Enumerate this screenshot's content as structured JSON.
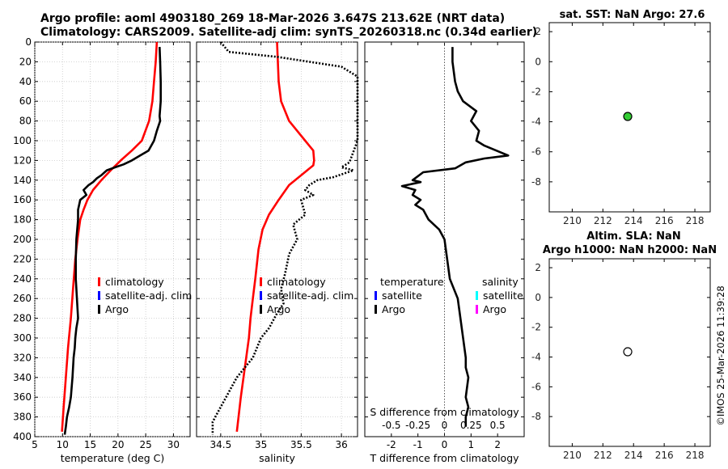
{
  "header": {
    "title_line1": "Argo profile: aoml 4903180_269 18-Mar-2026 3.647S 213.62E (NRT data)",
    "title_line2": "Climatology: CARS2009. Satellite-adj clim: synTS_20260318.nc (0.34d earlier)"
  },
  "footer": {
    "stamp": "©IMOS 25-Mar-2026 11:39:28"
  },
  "colors": {
    "climatology": "#ff0000",
    "satellite": "#0000ff",
    "argo": "#000000",
    "sal_satellite": "#00ffff",
    "sal_argo": "#ff00ff",
    "sst_marker": "#33cc33"
  },
  "chart_data": [
    {
      "type": "line",
      "name": "temperature-profile",
      "xlabel": "temperature (deg C)",
      "xlim": [
        5,
        33
      ],
      "ylim": [
        400,
        0
      ],
      "xticks": [
        5,
        10,
        15,
        20,
        25,
        30
      ],
      "yticks": [
        0,
        20,
        40,
        60,
        80,
        100,
        120,
        140,
        160,
        180,
        200,
        220,
        240,
        260,
        280,
        300,
        320,
        340,
        360,
        380,
        400
      ],
      "grid": true,
      "legend": [
        "climatology",
        "satellite-adj. clim",
        "Argo"
      ],
      "series": [
        {
          "name": "climatology",
          "color": "red",
          "style": "solid",
          "x": [
            27.0,
            26.8,
            26.5,
            26.2,
            25.6,
            24.3,
            22.5,
            20.5,
            18.7,
            17.0,
            15.5,
            14.5,
            13.8,
            13.2,
            12.7,
            12.3,
            11.9,
            11.5,
            11.0,
            10.6,
            10.2,
            9.9
          ],
          "y": [
            0,
            20,
            40,
            60,
            80,
            100,
            110,
            120,
            130,
            140,
            150,
            160,
            170,
            180,
            200,
            220,
            250,
            280,
            310,
            340,
            370,
            395
          ]
        },
        {
          "name": "Argo",
          "color": "black",
          "style": "solid",
          "x": [
            27.5,
            27.6,
            27.7,
            27.7,
            27.5,
            27.6,
            27.0,
            26.5,
            25.5,
            24.0,
            22.5,
            21.0,
            19.5,
            18.0,
            17.0,
            16.2,
            15.5,
            14.7,
            13.8,
            14.3,
            13.2,
            12.8,
            12.8,
            12.5,
            12.4,
            12.4,
            12.6,
            12.8,
            12.5,
            12.3,
            12.2,
            12.0,
            11.8,
            11.5,
            11.2,
            10.8,
            10.6,
            10.4
          ],
          "y": [
            5,
            20,
            40,
            60,
            75,
            80,
            90,
            100,
            110,
            115,
            120,
            124,
            127,
            130,
            135,
            138,
            142,
            145,
            150,
            155,
            160,
            170,
            180,
            200,
            220,
            240,
            260,
            280,
            290,
            300,
            310,
            320,
            340,
            360,
            370,
            380,
            390,
            398
          ]
        }
      ]
    },
    {
      "type": "line",
      "name": "salinity-profile",
      "xlabel": "salinity",
      "xlim": [
        34.2,
        36.2
      ],
      "ylim": [
        400,
        0
      ],
      "xticks": [
        34.5,
        35,
        35.5,
        36
      ],
      "grid": true,
      "legend": [
        "climatology",
        "satellite-adj. clim",
        "Argo"
      ],
      "series": [
        {
          "name": "climatology",
          "color": "red",
          "style": "solid",
          "x": [
            35.2,
            35.21,
            35.22,
            35.25,
            35.35,
            35.55,
            35.65,
            35.66,
            35.65,
            35.5,
            35.35,
            35.22,
            35.1,
            35.02,
            34.97,
            34.93,
            34.9,
            34.87,
            34.85,
            34.8,
            34.75,
            34.7
          ],
          "y": [
            0,
            20,
            40,
            60,
            80,
            100,
            110,
            120,
            125,
            135,
            145,
            160,
            175,
            190,
            210,
            240,
            260,
            280,
            300,
            330,
            360,
            395
          ]
        },
        {
          "name": "Argo",
          "color": "black",
          "style": "dotted",
          "x": [
            34.5,
            34.6,
            35.2,
            36.0,
            36.2,
            36.2,
            36.1,
            36.0,
            36.15,
            35.9,
            35.7,
            35.6,
            35.55,
            35.65,
            35.5,
            35.55,
            35.4,
            35.45,
            35.35,
            35.3,
            35.25,
            35.28,
            35.2,
            35.1,
            35.0,
            34.95,
            34.9,
            34.8,
            34.7,
            34.6,
            34.5,
            34.4,
            34.4
          ],
          "y": [
            0,
            10,
            15,
            25,
            35,
            100,
            122,
            127,
            130,
            137,
            140,
            145,
            150,
            155,
            160,
            175,
            185,
            200,
            215,
            235,
            250,
            265,
            275,
            290,
            300,
            310,
            320,
            330,
            340,
            355,
            370,
            385,
            398
          ]
        }
      ]
    },
    {
      "type": "line",
      "name": "difference-profile",
      "xlabel": "T difference from climatology",
      "xlabel_top": "S difference from climatology",
      "xlim": [
        -3,
        3
      ],
      "xlim_top": [
        -0.75,
        0.75
      ],
      "ylim": [
        400,
        0
      ],
      "xticks": [
        -2,
        -1,
        0,
        1,
        2
      ],
      "xticks_top": [
        -0.5,
        -0.25,
        0,
        0.25,
        0.5
      ],
      "legend_temperature": [
        "temperature",
        "satellite",
        "Argo"
      ],
      "legend_salinity": [
        "salinity",
        "satellite",
        "Argo"
      ],
      "series": [
        {
          "name": "T Argo - clim",
          "color": "black",
          "style": "solid",
          "x": [
            0.3,
            0.3,
            0.4,
            0.5,
            0.7,
            1.2,
            1.0,
            1.3,
            1.2,
            1.5,
            2.4,
            1.5,
            0.8,
            0.4,
            -0.8,
            -1.2,
            -0.9,
            -1.6,
            -1.1,
            -1.2,
            -0.9,
            -1.1,
            -0.8,
            -0.6,
            -0.2,
            0.0,
            0.1,
            0.2,
            0.5,
            0.6,
            0.7,
            0.8,
            0.8,
            0.9,
            0.8,
            0.9,
            0.8,
            0.8
          ],
          "y": [
            5,
            20,
            40,
            50,
            60,
            70,
            80,
            90,
            100,
            105,
            115,
            118,
            122,
            128,
            132,
            140,
            142,
            146,
            150,
            155,
            160,
            165,
            170,
            180,
            190,
            200,
            220,
            240,
            260,
            280,
            300,
            320,
            330,
            340,
            360,
            370,
            380,
            390
          ]
        }
      ]
    },
    {
      "type": "scatter",
      "name": "sst-map",
      "title": "sat. SST: NaN Argo: 27.6",
      "xlim": [
        208.5,
        219
      ],
      "ylim": [
        -10,
        2.6
      ],
      "xticks": [
        210,
        212,
        214,
        216,
        218
      ],
      "yticks": [
        2,
        0,
        -2,
        -4,
        -6,
        -8
      ],
      "points": [
        {
          "x": 213.62,
          "y": -3.647,
          "fill": "green"
        }
      ]
    },
    {
      "type": "scatter",
      "name": "sla-map",
      "title": "Altim. SLA: NaN",
      "subtitle": "Argo h1000: NaN h2000: NaN",
      "xlim": [
        208.5,
        219
      ],
      "ylim": [
        -10,
        2.6
      ],
      "xticks": [
        210,
        212,
        214,
        216,
        218
      ],
      "yticks": [
        2,
        0,
        -2,
        -4,
        -6,
        -8
      ],
      "points": [
        {
          "x": 213.62,
          "y": -3.647,
          "fill": "white"
        }
      ]
    }
  ]
}
